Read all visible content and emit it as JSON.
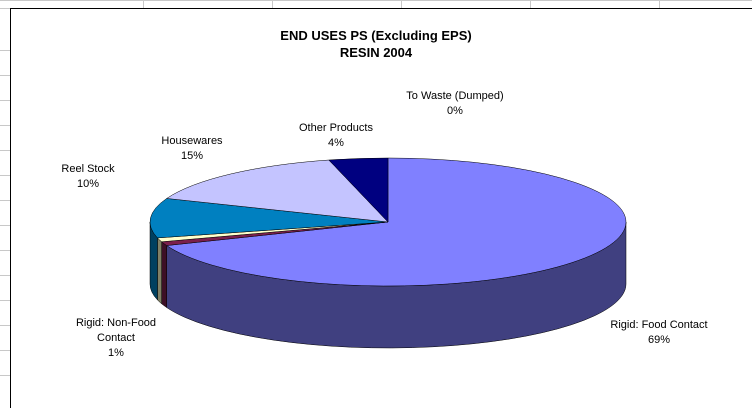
{
  "chart_data": {
    "type": "pie3d",
    "title": "END USES PS (Excluding EPS)",
    "subtitle": "RESIN 2004",
    "categories": [
      "Rigid: Food Contact",
      "Rigid: Non-Food Contact",
      null,
      "Reel Stock",
      "Housewares",
      "Other Products",
      "To Waste (Dumped)"
    ],
    "values": [
      69,
      1,
      1,
      10,
      15,
      4,
      0
    ],
    "value_labels": [
      "69%",
      "1%",
      null,
      "10%",
      "15%",
      "4%",
      "0%"
    ],
    "colors": [
      "#8080ff",
      "#7a1f4c",
      "#ffffcc",
      "#0080c0",
      "#c4c4ff",
      "#000080",
      "#ffff00"
    ]
  }
}
